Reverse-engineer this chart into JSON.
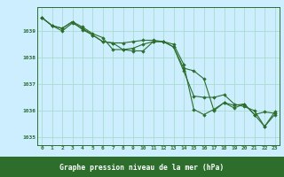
{
  "title": "Graphe pression niveau de la mer (hPa)",
  "background_color": "#cceeff",
  "plot_bg_color": "#cceeff",
  "grid_color": "#aaddcc",
  "line_color": "#2d6e2d",
  "marker_color": "#2d6e2d",
  "xlim": [
    -0.5,
    23.5
  ],
  "ylim": [
    1034.7,
    1039.9
  ],
  "yticks": [
    1035,
    1036,
    1037,
    1038,
    1039
  ],
  "xticks": [
    0,
    1,
    2,
    3,
    4,
    5,
    6,
    7,
    8,
    9,
    10,
    11,
    12,
    13,
    14,
    15,
    16,
    17,
    18,
    19,
    20,
    21,
    22,
    23
  ],
  "series": [
    [
      1039.5,
      1039.2,
      1039.0,
      1039.3,
      1039.1,
      1038.85,
      1038.6,
      1038.55,
      1038.55,
      1038.6,
      1038.65,
      1038.65,
      1038.6,
      1038.5,
      1037.75,
      1036.05,
      1035.85,
      1036.05,
      1036.3,
      1036.1,
      1036.25,
      1035.85,
      1035.95,
      1035.9
    ],
    [
      1039.5,
      1039.2,
      1039.1,
      1039.35,
      1039.15,
      1038.9,
      1038.75,
      1038.3,
      1038.3,
      1038.35,
      1038.5,
      1038.6,
      1038.6,
      1038.4,
      1037.6,
      1037.5,
      1037.2,
      1036.0,
      1036.3,
      1036.2,
      1036.25,
      1035.85,
      1035.4,
      1035.85
    ],
    [
      1039.5,
      1039.2,
      1039.1,
      1039.35,
      1039.05,
      1038.85,
      1038.6,
      1038.55,
      1038.3,
      1038.25,
      1038.25,
      1038.6,
      1038.6,
      1038.4,
      1037.5,
      1036.55,
      1036.5,
      1036.5,
      1036.6,
      1036.25,
      1036.15,
      1036.0,
      1035.4,
      1035.95
    ]
  ]
}
